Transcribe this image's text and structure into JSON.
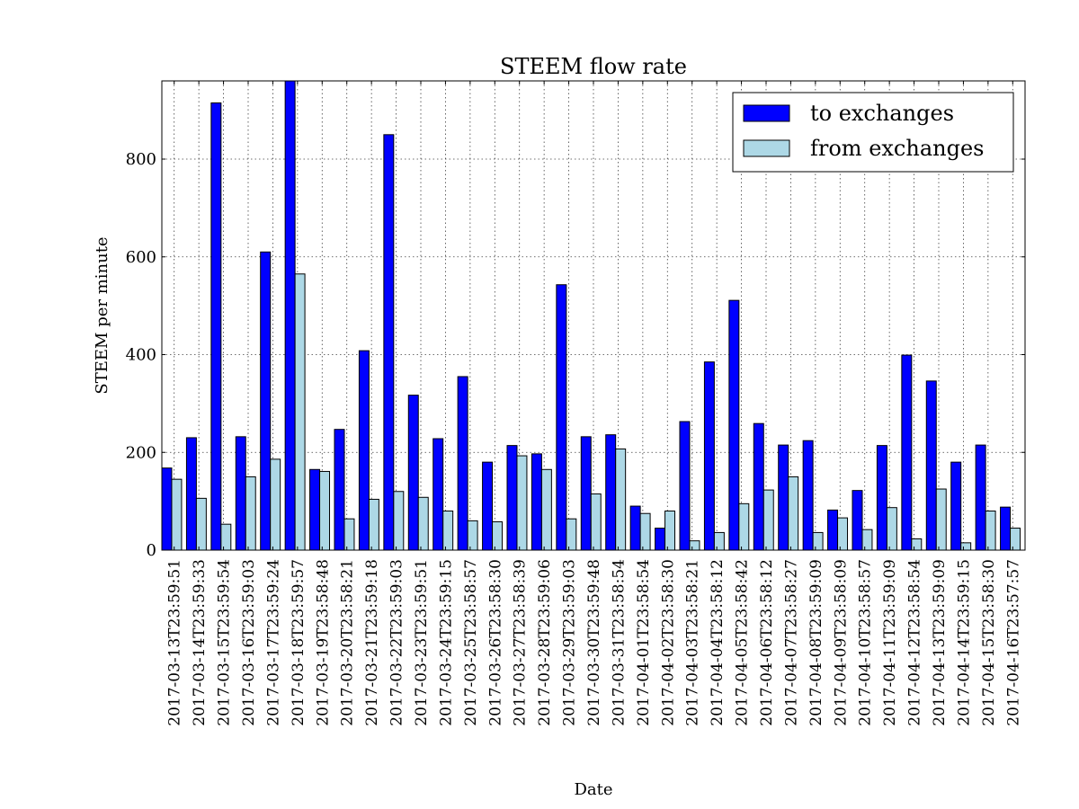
{
  "chart_data": {
    "type": "bar",
    "title": "STEEM flow rate",
    "xlabel": "Date",
    "ylabel": "STEEM per minute",
    "ylim": [
      0,
      960
    ],
    "yticks": [
      0,
      200,
      400,
      600,
      800
    ],
    "grid": true,
    "legend_position": "top-right",
    "categories": [
      "2017-03-13T23:59:51",
      "2017-03-14T23:59:33",
      "2017-03-15T23:59:54",
      "2017-03-16T23:59:03",
      "2017-03-17T23:59:24",
      "2017-03-18T23:59:57",
      "2017-03-19T23:58:48",
      "2017-03-20T23:58:21",
      "2017-03-21T23:59:18",
      "2017-03-22T23:59:03",
      "2017-03-23T23:59:51",
      "2017-03-24T23:59:15",
      "2017-03-25T23:58:57",
      "2017-03-26T23:58:30",
      "2017-03-27T23:58:39",
      "2017-03-28T23:59:06",
      "2017-03-29T23:59:03",
      "2017-03-30T23:59:48",
      "2017-03-31T23:58:54",
      "2017-04-01T23:58:54",
      "2017-04-02T23:58:30",
      "2017-04-03T23:58:21",
      "2017-04-04T23:58:12",
      "2017-04-05T23:58:42",
      "2017-04-06T23:58:12",
      "2017-04-07T23:58:27",
      "2017-04-08T23:59:09",
      "2017-04-09T23:58:09",
      "2017-04-10T23:58:57",
      "2017-04-11T23:59:09",
      "2017-04-12T23:58:54",
      "2017-04-13T23:59:09",
      "2017-04-14T23:59:15",
      "2017-04-15T23:58:30",
      "2017-04-16T23:57:57"
    ],
    "series": [
      {
        "name": "to exchanges",
        "color": "#0000ff",
        "values": [
          168,
          230,
          915,
          232,
          610,
          960,
          165,
          247,
          408,
          850,
          317,
          228,
          355,
          180,
          214,
          197,
          543,
          232,
          236,
          90,
          45,
          263,
          385,
          511,
          259,
          215,
          224,
          82,
          122,
          214,
          399,
          346,
          180,
          215,
          88
        ]
      },
      {
        "name": "from exchanges",
        "color": "#add8e6",
        "values": [
          145,
          106,
          53,
          150,
          186,
          565,
          161,
          64,
          104,
          120,
          108,
          80,
          60,
          58,
          193,
          165,
          64,
          115,
          207,
          75,
          80,
          19,
          36,
          95,
          123,
          150,
          36,
          66,
          42,
          87,
          23,
          125,
          15,
          80,
          45
        ]
      }
    ]
  }
}
